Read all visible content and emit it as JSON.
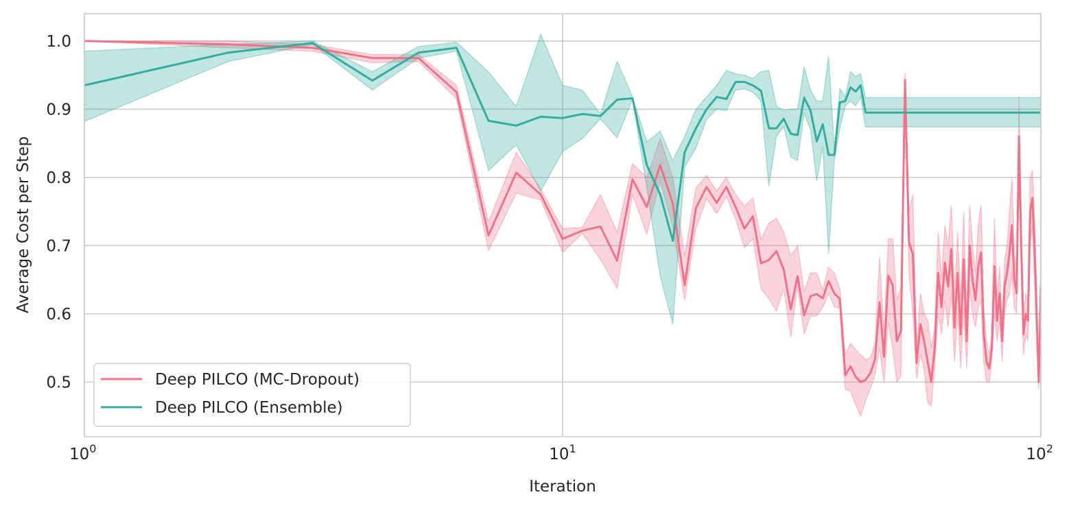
{
  "chart_data": {
    "type": "line",
    "title": "",
    "xlabel": "Iteration",
    "ylabel": "Average Cost per Step",
    "x_scale": "log",
    "xlim": [
      1,
      100
    ],
    "ylim": [
      0.42,
      1.04
    ],
    "yticks": [
      "0.5",
      "0.6",
      "0.7",
      "0.8",
      "0.9",
      "1.0"
    ],
    "ytick_values": [
      0.5,
      0.6,
      0.7,
      0.8,
      0.9,
      1.0
    ],
    "xticks": [
      {
        "value": 1,
        "base": "10",
        "exp": "0"
      },
      {
        "value": 10,
        "base": "10",
        "exp": "1"
      },
      {
        "value": 100,
        "base": "10",
        "exp": "2"
      }
    ],
    "grid": true,
    "legend_position": "lower-left",
    "series": [
      {
        "name": "Deep PILCO (MC-Dropout)",
        "color": "#f0728a",
        "x": [
          1,
          2,
          3,
          4,
          5,
          6,
          7,
          8,
          9,
          10,
          11,
          12,
          13,
          14,
          15,
          16,
          17,
          18,
          19,
          20,
          21,
          22,
          23,
          24,
          25,
          26,
          27,
          28,
          29,
          30,
          31,
          32,
          33,
          34,
          35,
          36,
          37,
          38,
          39,
          40,
          41,
          42,
          43,
          44,
          45,
          46,
          47,
          48,
          49,
          50,
          51,
          52,
          53,
          54,
          55,
          56,
          57,
          58,
          59,
          60,
          61,
          62,
          63,
          64,
          65,
          66,
          67,
          68,
          69,
          70,
          71,
          72,
          73,
          74,
          75,
          76,
          77,
          78,
          79,
          80,
          81,
          82,
          83,
          84,
          85,
          86,
          87,
          88,
          89,
          90,
          91,
          92,
          93,
          94,
          95,
          96,
          97,
          98,
          99,
          100
        ],
        "y": [
          1.0,
          0.995,
          0.99,
          0.975,
          0.975,
          0.925,
          0.715,
          0.807,
          0.775,
          0.71,
          0.722,
          0.728,
          0.678,
          0.797,
          0.757,
          0.818,
          0.762,
          0.642,
          0.755,
          0.786,
          0.763,
          0.786,
          0.757,
          0.725,
          0.743,
          0.674,
          0.679,
          0.692,
          0.665,
          0.607,
          0.655,
          0.598,
          0.626,
          0.629,
          0.623,
          0.648,
          0.63,
          0.622,
          0.51,
          0.523,
          0.508,
          0.5,
          0.503,
          0.513,
          0.533,
          0.617,
          0.537,
          0.656,
          0.642,
          0.56,
          0.575,
          0.943,
          0.705,
          0.688,
          0.528,
          0.585,
          0.56,
          0.53,
          0.5,
          0.55,
          0.66,
          0.61,
          0.675,
          0.64,
          0.695,
          0.58,
          0.66,
          0.57,
          0.68,
          0.56,
          0.7,
          0.65,
          0.62,
          0.67,
          0.69,
          0.57,
          0.53,
          0.52,
          0.55,
          0.67,
          0.59,
          0.63,
          0.56,
          0.64,
          0.66,
          0.69,
          0.73,
          0.65,
          0.63,
          0.86,
          0.7,
          0.57,
          0.6,
          0.59,
          0.75,
          0.77,
          0.7,
          0.6,
          0.5,
          0.64
        ],
        "lower": [
          1.0,
          0.99,
          0.985,
          0.968,
          0.97,
          0.915,
          0.693,
          0.777,
          0.767,
          0.69,
          0.718,
          0.68,
          0.637,
          0.775,
          0.717,
          0.795,
          0.727,
          0.62,
          0.725,
          0.769,
          0.747,
          0.772,
          0.739,
          0.697,
          0.71,
          0.637,
          0.622,
          0.604,
          0.637,
          0.566,
          0.64,
          0.57,
          0.597,
          0.597,
          0.61,
          0.63,
          0.61,
          0.609,
          0.489,
          0.487,
          0.467,
          0.45,
          0.472,
          0.49,
          0.51,
          0.55,
          0.5,
          0.588,
          0.55,
          0.5,
          0.51,
          0.93,
          0.66,
          0.6,
          0.505,
          0.54,
          0.52,
          0.47,
          0.465,
          0.52,
          0.6,
          0.57,
          0.62,
          0.58,
          0.63,
          0.53,
          0.6,
          0.52,
          0.61,
          0.52,
          0.64,
          0.6,
          0.58,
          0.61,
          0.62,
          0.53,
          0.5,
          0.5,
          0.53,
          0.6,
          0.56,
          0.59,
          0.53,
          0.6,
          0.62,
          0.63,
          0.66,
          0.61,
          0.6,
          0.8,
          0.66,
          0.54,
          0.57,
          0.56,
          0.7,
          0.73,
          0.65,
          0.56,
          0.49,
          0.6
        ],
        "upper": [
          1.0,
          1.0,
          0.995,
          0.98,
          0.98,
          0.935,
          0.735,
          0.837,
          0.783,
          0.725,
          0.727,
          0.775,
          0.72,
          0.82,
          0.8,
          0.857,
          0.8,
          0.685,
          0.785,
          0.803,
          0.78,
          0.8,
          0.775,
          0.758,
          0.77,
          0.71,
          0.733,
          0.74,
          0.72,
          0.685,
          0.7,
          0.632,
          0.66,
          0.66,
          0.635,
          0.668,
          0.66,
          0.637,
          0.54,
          0.557,
          0.548,
          0.54,
          0.533,
          0.536,
          0.556,
          0.684,
          0.574,
          0.71,
          0.71,
          0.62,
          0.64,
          0.953,
          0.75,
          0.775,
          0.55,
          0.63,
          0.6,
          0.59,
          0.55,
          0.58,
          0.72,
          0.65,
          0.73,
          0.7,
          0.76,
          0.63,
          0.72,
          0.62,
          0.75,
          0.6,
          0.76,
          0.7,
          0.66,
          0.73,
          0.76,
          0.61,
          0.56,
          0.54,
          0.57,
          0.74,
          0.62,
          0.67,
          0.59,
          0.68,
          0.7,
          0.75,
          0.8,
          0.69,
          0.66,
          0.92,
          0.74,
          0.6,
          0.63,
          0.62,
          0.8,
          0.81,
          0.75,
          0.64,
          0.51,
          0.68
        ]
      },
      {
        "name": "Deep PILCO (Ensemble)",
        "color": "#33ada0",
        "x": [
          1,
          2,
          3,
          4,
          5,
          6,
          7,
          8,
          9,
          10,
          11,
          12,
          13,
          14,
          15,
          16,
          17,
          18,
          19,
          20,
          21,
          22,
          23,
          24,
          25,
          26,
          27,
          28,
          29,
          30,
          31,
          32,
          33,
          34,
          35,
          36,
          37,
          38,
          39,
          40,
          41,
          42,
          43,
          44,
          45,
          46,
          47,
          48,
          49,
          50,
          51,
          52,
          53,
          54,
          55,
          56,
          57,
          58,
          59,
          60,
          61,
          62,
          63,
          64,
          65,
          66,
          67,
          68,
          69,
          70,
          71,
          72,
          73,
          74,
          75,
          76,
          77,
          78,
          79,
          80,
          81,
          82,
          83,
          84,
          85,
          86,
          87,
          88,
          89,
          90,
          91,
          92,
          93,
          94,
          95,
          96,
          97,
          98,
          99,
          100
        ],
        "y": [
          0.935,
          0.983,
          0.997,
          0.942,
          0.983,
          0.99,
          0.883,
          0.876,
          0.889,
          0.887,
          0.893,
          0.89,
          0.914,
          0.916,
          0.818,
          0.775,
          0.707,
          0.837,
          0.872,
          0.9,
          0.918,
          0.915,
          0.94,
          0.94,
          0.935,
          0.927,
          0.872,
          0.872,
          0.886,
          0.864,
          0.862,
          0.917,
          0.898,
          0.853,
          0.878,
          0.833,
          0.833,
          0.91,
          0.912,
          0.932,
          0.926,
          0.935,
          0.895,
          0.895,
          0.895,
          0.895,
          0.895,
          0.895,
          0.895,
          0.895,
          0.895,
          0.895,
          0.895,
          0.895,
          0.895,
          0.895,
          0.895,
          0.895,
          0.895,
          0.895,
          0.895,
          0.895,
          0.895,
          0.895,
          0.895,
          0.895,
          0.895,
          0.895,
          0.895,
          0.895,
          0.895,
          0.895,
          0.895,
          0.895,
          0.895,
          0.895,
          0.895,
          0.895,
          0.895,
          0.895,
          0.895,
          0.895,
          0.895,
          0.895,
          0.895,
          0.895,
          0.895,
          0.895,
          0.895,
          0.895,
          0.895,
          0.895,
          0.895,
          0.895,
          0.895,
          0.895,
          0.895,
          0.895,
          0.895,
          0.895
        ],
        "lower": [
          0.882,
          0.97,
          0.995,
          0.928,
          0.975,
          0.985,
          0.81,
          0.848,
          0.78,
          0.838,
          0.857,
          0.886,
          0.858,
          0.915,
          0.785,
          0.655,
          0.585,
          0.815,
          0.843,
          0.885,
          0.9,
          0.898,
          0.928,
          0.93,
          0.925,
          0.912,
          0.787,
          0.86,
          0.875,
          0.83,
          0.825,
          0.895,
          0.87,
          0.795,
          0.845,
          0.688,
          0.825,
          0.872,
          0.905,
          0.912,
          0.905,
          0.918,
          0.874,
          0.874,
          0.874,
          0.874,
          0.874,
          0.874,
          0.874,
          0.874,
          0.874,
          0.874,
          0.874,
          0.874,
          0.874,
          0.874,
          0.874,
          0.874,
          0.874,
          0.874,
          0.874,
          0.874,
          0.874,
          0.874,
          0.874,
          0.874,
          0.874,
          0.874,
          0.874,
          0.874,
          0.874,
          0.874,
          0.874,
          0.874,
          0.874,
          0.874,
          0.874,
          0.874,
          0.874,
          0.874,
          0.874,
          0.874,
          0.874,
          0.874,
          0.874,
          0.874,
          0.874,
          0.874,
          0.874,
          0.874,
          0.874,
          0.874,
          0.874,
          0.874,
          0.874,
          0.874,
          0.874,
          0.874,
          0.874,
          0.874
        ],
        "upper": [
          0.985,
          0.995,
          1.0,
          0.955,
          0.992,
          0.998,
          0.955,
          0.904,
          1.01,
          0.935,
          0.928,
          0.893,
          0.97,
          0.918,
          0.852,
          0.868,
          0.825,
          0.86,
          0.9,
          0.918,
          0.935,
          0.957,
          0.952,
          0.95,
          0.945,
          0.955,
          0.957,
          0.905,
          0.898,
          0.9,
          0.9,
          0.962,
          0.928,
          0.912,
          0.912,
          0.978,
          0.842,
          0.93,
          0.918,
          0.955,
          0.948,
          0.952,
          0.917,
          0.917,
          0.917,
          0.917,
          0.917,
          0.917,
          0.917,
          0.917,
          0.917,
          0.917,
          0.917,
          0.917,
          0.917,
          0.917,
          0.917,
          0.917,
          0.917,
          0.917,
          0.917,
          0.917,
          0.917,
          0.917,
          0.917,
          0.917,
          0.917,
          0.917,
          0.917,
          0.917,
          0.917,
          0.917,
          0.917,
          0.917,
          0.917,
          0.917,
          0.917,
          0.917,
          0.917,
          0.917,
          0.917,
          0.917,
          0.917,
          0.917,
          0.917,
          0.917,
          0.917,
          0.917,
          0.917,
          0.917,
          0.917,
          0.917,
          0.917,
          0.917,
          0.917,
          0.917,
          0.917,
          0.917,
          0.917,
          0.917
        ]
      }
    ]
  }
}
